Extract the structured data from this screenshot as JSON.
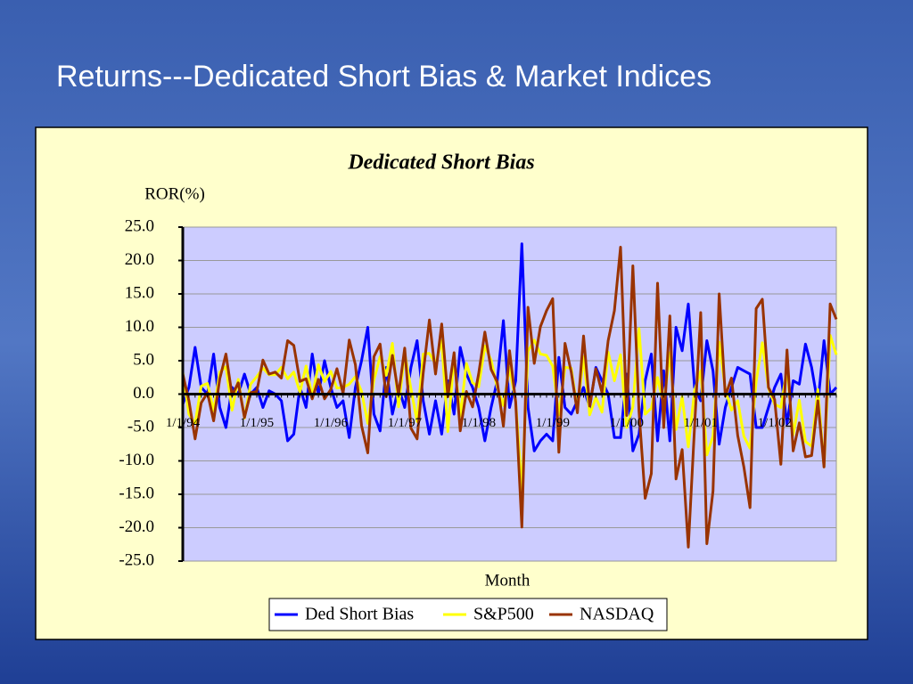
{
  "title": "Returns---Dedicated Short Bias & Market Indices",
  "chart_data": {
    "type": "line",
    "title": "Dedicated Short Bias",
    "y_label": "ROR(%)",
    "x_label": "Month",
    "categories": [
      "1/1/94",
      null,
      null,
      null,
      null,
      null,
      null,
      null,
      null,
      null,
      null,
      null,
      "1/1/95",
      null,
      null,
      null,
      null,
      null,
      null,
      null,
      null,
      null,
      null,
      null,
      "1/1/96",
      null,
      null,
      null,
      null,
      null,
      null,
      null,
      null,
      null,
      null,
      null,
      "1/1/97",
      null,
      null,
      null,
      null,
      null,
      null,
      null,
      null,
      null,
      null,
      null,
      "1/1/98",
      null,
      null,
      null,
      null,
      null,
      null,
      null,
      null,
      null,
      null,
      null,
      "1/1/99",
      null,
      null,
      null,
      null,
      null,
      null,
      null,
      null,
      null,
      null,
      null,
      "1/1/00",
      null,
      null,
      null,
      null,
      null,
      null,
      null,
      null,
      null,
      null,
      null,
      "1/1/01",
      null,
      null,
      null,
      null,
      null,
      null,
      null,
      null,
      null,
      null,
      null,
      "1/1/02",
      null,
      null,
      null,
      null,
      null,
      null,
      null,
      null,
      null,
      null
    ],
    "series": [
      {
        "name": "Ded Short Bias",
        "color": "#0000ff",
        "values": [
          -1.5,
          1,
          7,
          1,
          0,
          6,
          -2,
          -5,
          1,
          0,
          3,
          0,
          1,
          -2,
          0.5,
          0,
          -1,
          -7,
          -6,
          1,
          -2,
          6,
          0,
          5,
          1,
          -2,
          -1,
          -6.5,
          1,
          5,
          10,
          -3,
          -5.5,
          4,
          -3,
          1,
          -2,
          4,
          8,
          -1,
          -6,
          -1,
          -6,
          2,
          -3,
          7,
          3,
          1,
          -2,
          -7,
          -2,
          2,
          11,
          -2,
          2,
          22.5,
          -2,
          -8.5,
          -7,
          -6,
          -7,
          5.5,
          -2,
          -3,
          -1,
          1,
          -2,
          4,
          2,
          0,
          -6.5,
          -6.5,
          3,
          -8.5,
          -6,
          2,
          6,
          -7,
          3.5,
          -7,
          10,
          6.5,
          13.5,
          1,
          -1,
          8,
          3.5,
          -7.5,
          -2,
          1,
          4,
          3.5,
          3,
          -5,
          -5,
          -2,
          1,
          3,
          -4.5,
          2,
          1.5,
          7.5,
          4,
          -1.5,
          8,
          0,
          1
        ]
      },
      {
        "name": "S&P500",
        "color": "#ffff00",
        "values": [
          3.3,
          -3,
          -4.4,
          1.2,
          1.6,
          -2.5,
          3.3,
          4.1,
          -2.4,
          2.2,
          -3.6,
          1.5,
          2.6,
          3.9,
          2.9,
          2.9,
          4,
          2.3,
          3.3,
          0.3,
          4.2,
          -0.4,
          4.4,
          1.9,
          3.4,
          0.9,
          1,
          1.5,
          2.6,
          0.4,
          -4.4,
          2.1,
          5.6,
          2.8,
          7.6,
          -1.9,
          6.2,
          0.8,
          -4.1,
          6,
          6.1,
          4.5,
          8,
          -5.6,
          5.5,
          -3.3,
          4.6,
          1.7,
          1.1,
          7.2,
          5.1,
          1,
          -1.7,
          4,
          -1.1,
          -14.5,
          6.4,
          8.1,
          6,
          5.8,
          4.2,
          -3.1,
          4,
          3.9,
          -2.4,
          5.6,
          -3.1,
          -0.5,
          -2.7,
          6.3,
          2,
          5.9,
          -5,
          -1.9,
          9.8,
          -3,
          -2.1,
          2.5,
          -1.6,
          6.2,
          -5.3,
          -0.4,
          -7.9,
          0.5,
          3.5,
          -9.1,
          -6.3,
          7.8,
          0.7,
          -2.4,
          -1,
          -6.3,
          -8.1,
          1.9,
          7.7,
          0.9,
          -1.5,
          -2,
          3.8,
          -6.1,
          -0.9,
          -7.1,
          -7.8,
          0.7,
          -10.9,
          8.8,
          5.9
        ]
      },
      {
        "name": "NASDAQ",
        "color": "#993300",
        "values": [
          3,
          -1,
          -6.7,
          -1.3,
          0.2,
          -4,
          2.3,
          6,
          -0.2,
          1.7,
          -3.5,
          0.2,
          0.4,
          5.1,
          3,
          3.3,
          2.4,
          8,
          7.3,
          1.9,
          2.3,
          -0.7,
          2.2,
          -0.7,
          0.7,
          3.8,
          0.1,
          8.1,
          4.4,
          -4.7,
          -8.8,
          5.6,
          7.5,
          -0.4,
          5.8,
          -0.1,
          6.9,
          -5.1,
          -6.7,
          3.2,
          11.1,
          3,
          10.5,
          -0.4,
          6.2,
          -5.5,
          0.4,
          -1.9,
          3.1,
          9.3,
          3.7,
          1.8,
          -4.8,
          6.5,
          -1.2,
          -19.9,
          13,
          4.6,
          10.1,
          12.5,
          14.3,
          -8.7,
          7.6,
          3.3,
          -2.8,
          8.7,
          -1.8,
          3.8,
          0.2,
          8,
          12.5,
          22,
          -3.2,
          19.2,
          -2.6,
          -15.6,
          -11.9,
          16.6,
          -5,
          11.7,
          -12.7,
          -8.3,
          -22.9,
          -4.9,
          12.2,
          -22.4,
          -14.5,
          15,
          -0.3,
          2.4,
          -6.2,
          -10.9,
          -17,
          12.8,
          14.2,
          1,
          -0.8,
          -10.5,
          6.6,
          -8.5,
          -4.3,
          -9.4,
          -9.2,
          -1,
          -10.9,
          13.5,
          11.2
        ]
      }
    ],
    "ylim": [
      -25,
      25
    ],
    "yticks": [
      {
        "value": 25,
        "label": "25.0"
      },
      {
        "value": 20,
        "label": "20.0"
      },
      {
        "value": 15,
        "label": "15.0"
      },
      {
        "value": 10,
        "label": "10.0"
      },
      {
        "value": 5,
        "label": "5.0"
      },
      {
        "value": 0,
        "label": "0.0"
      },
      {
        "value": -5,
        "label": "-5.0"
      },
      {
        "value": -10,
        "label": "-10.0"
      },
      {
        "value": -15,
        "label": "-15.0"
      },
      {
        "value": -20,
        "label": "-20.0"
      },
      {
        "value": -25,
        "label": "-25.0"
      }
    ],
    "grid": true
  }
}
